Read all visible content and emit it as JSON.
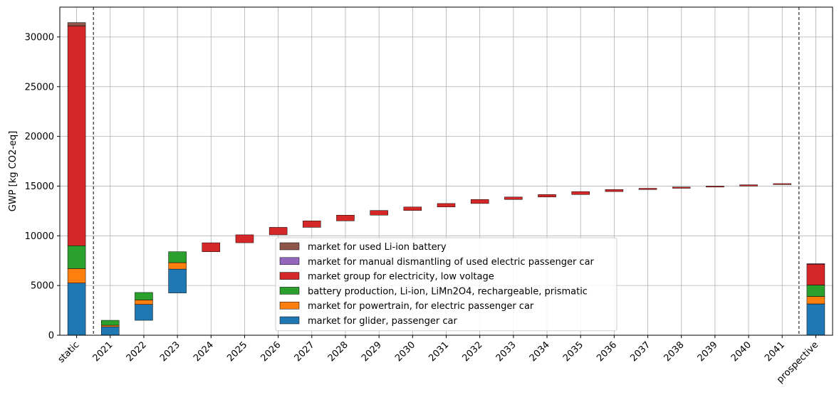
{
  "chart_data": {
    "type": "bar",
    "subtype": "stacked waterfall",
    "ylabel": "GWP [kg CO2-eq]",
    "xlabel": "",
    "title": "",
    "ylim": [
      0,
      33000
    ],
    "yticks": [
      0,
      5000,
      10000,
      15000,
      20000,
      25000,
      30000
    ],
    "grid": true,
    "legend_position": "lower-center",
    "categories": [
      "static",
      "2021",
      "2022",
      "2023",
      "2024",
      "2025",
      "2026",
      "2027",
      "2028",
      "2029",
      "2030",
      "2031",
      "2032",
      "2033",
      "2034",
      "2035",
      "2036",
      "2037",
      "2038",
      "2039",
      "2040",
      "2041",
      "prospective"
    ],
    "separators_after": [
      "static",
      "2041"
    ],
    "series": [
      {
        "name": "market for glider, passenger car",
        "color": "#1f77b4",
        "segments": [
          [
            0,
            5250
          ],
          [
            0,
            850
          ],
          [
            1500,
            3100
          ],
          [
            4250,
            6650
          ],
          null,
          null,
          null,
          null,
          null,
          null,
          null,
          null,
          null,
          null,
          null,
          null,
          null,
          null,
          null,
          null,
          null,
          null,
          [
            0,
            3150
          ]
        ]
      },
      {
        "name": "market for powertrain, for electric passenger car",
        "color": "#ff7f0e",
        "segments": [
          [
            5250,
            6700
          ],
          [
            850,
            1000
          ],
          [
            3100,
            3550
          ],
          [
            6650,
            7300
          ],
          null,
          null,
          null,
          null,
          null,
          null,
          null,
          null,
          null,
          null,
          null,
          null,
          null,
          null,
          null,
          null,
          null,
          null,
          [
            3150,
            3900
          ]
        ]
      },
      {
        "name": "battery production, Li-ion, LiMn2O4, rechargeable, prismatic",
        "color": "#2ca02c",
        "segments": [
          [
            6700,
            9000
          ],
          [
            1000,
            1500
          ],
          [
            3550,
            4300
          ],
          [
            7300,
            8400
          ],
          null,
          null,
          null,
          null,
          null,
          null,
          null,
          null,
          null,
          null,
          null,
          null,
          null,
          null,
          null,
          null,
          null,
          null,
          [
            3900,
            5050
          ]
        ]
      },
      {
        "name": "market group for electricity, low voltage",
        "color": "#d62728",
        "segments": [
          [
            9000,
            31100
          ],
          null,
          null,
          null,
          [
            8400,
            9300
          ],
          [
            9300,
            10100
          ],
          [
            10100,
            10850
          ],
          [
            10850,
            11500
          ],
          [
            11500,
            12080
          ],
          [
            12080,
            12550
          ],
          [
            12550,
            12900
          ],
          [
            12900,
            13250
          ],
          [
            13250,
            13650
          ],
          [
            13650,
            13900
          ],
          [
            13900,
            14150
          ],
          [
            14150,
            14450
          ],
          [
            14450,
            14650
          ],
          [
            14650,
            14780
          ],
          [
            14780,
            14900
          ],
          [
            14900,
            15000
          ],
          [
            15000,
            15130
          ],
          [
            15150,
            15250
          ],
          [
            5050,
            7150
          ]
        ]
      },
      {
        "name": "market for manual dismantling of used electric passenger car",
        "color": "#9467bd",
        "segments": [
          null,
          null,
          null,
          null,
          null,
          null,
          null,
          null,
          null,
          null,
          null,
          null,
          null,
          null,
          null,
          null,
          null,
          null,
          null,
          null,
          null,
          null,
          [
            7150,
            7200
          ]
        ]
      },
      {
        "name": "market for used Li-ion battery",
        "color": "#8c564b",
        "segments": [
          [
            31100,
            31450
          ],
          null,
          null,
          null,
          null,
          null,
          null,
          null,
          null,
          null,
          null,
          null,
          null,
          null,
          null,
          null,
          null,
          null,
          null,
          null,
          null,
          null,
          null
        ]
      }
    ]
  }
}
